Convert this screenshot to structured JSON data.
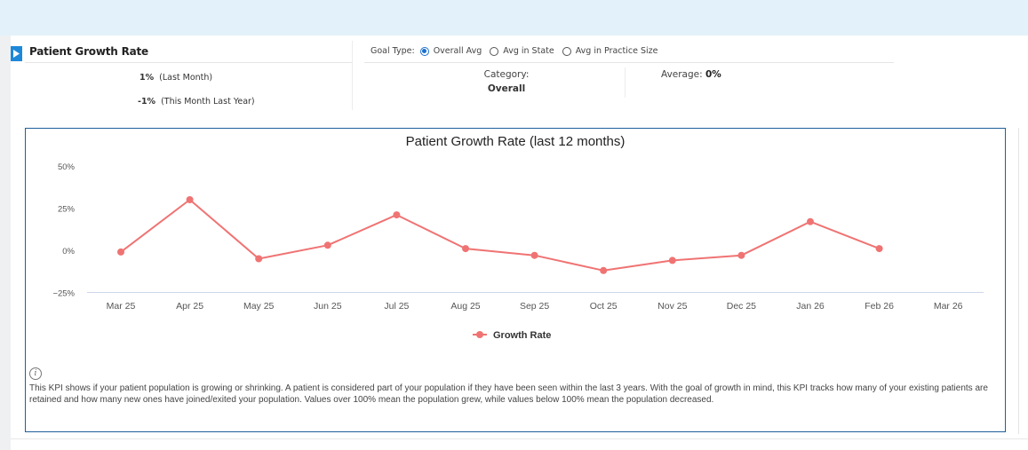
{
  "kpi": {
    "title": "Patient Growth Rate",
    "last_month_value": "1%",
    "last_month_label": "(Last Month)",
    "last_year_value": "-1%",
    "last_year_label": "(This Month Last Year)"
  },
  "goal_type": {
    "label": "Goal Type:",
    "options": [
      {
        "label": "Overall Avg",
        "selected": true
      },
      {
        "label": "Avg in State",
        "selected": false
      },
      {
        "label": "Avg in Practice Size",
        "selected": false
      }
    ]
  },
  "category": {
    "label": "Category:",
    "value": "Overall"
  },
  "average": {
    "label": "Average:",
    "value": "0%"
  },
  "chart_data": {
    "type": "line",
    "title": "Patient Growth Rate (last 12 months)",
    "categories": [
      "Mar 25",
      "Apr 25",
      "May 25",
      "Jun 25",
      "Jul 25",
      "Aug 25",
      "Sep 25",
      "Oct 25",
      "Nov 25",
      "Dec 25",
      "Jan 26",
      "Feb 26",
      "Mar 26"
    ],
    "series": [
      {
        "name": "Growth Rate",
        "values": [
          -1,
          30,
          -5,
          3,
          21,
          1,
          -3,
          -12,
          -6,
          -3,
          17,
          1,
          null
        ],
        "color": "#f07373"
      }
    ],
    "yticks": [
      "50%",
      "25%",
      "0%",
      "−25%"
    ],
    "ytick_values": [
      50,
      25,
      0,
      -25
    ],
    "ylim": [
      -25,
      50
    ],
    "legend": "bottom-center"
  },
  "info": {
    "icon": "info-icon",
    "text": "This KPI shows if your patient population is growing or shrinking. A patient is considered part of your population if they have been seen within the last 3 years. With the goal of growth in mind, this KPI tracks how many of your existing patients are retained and how many new ones have joined/exited your population. Values over 100% mean the population grew, while values below 100% mean the population decreased."
  }
}
